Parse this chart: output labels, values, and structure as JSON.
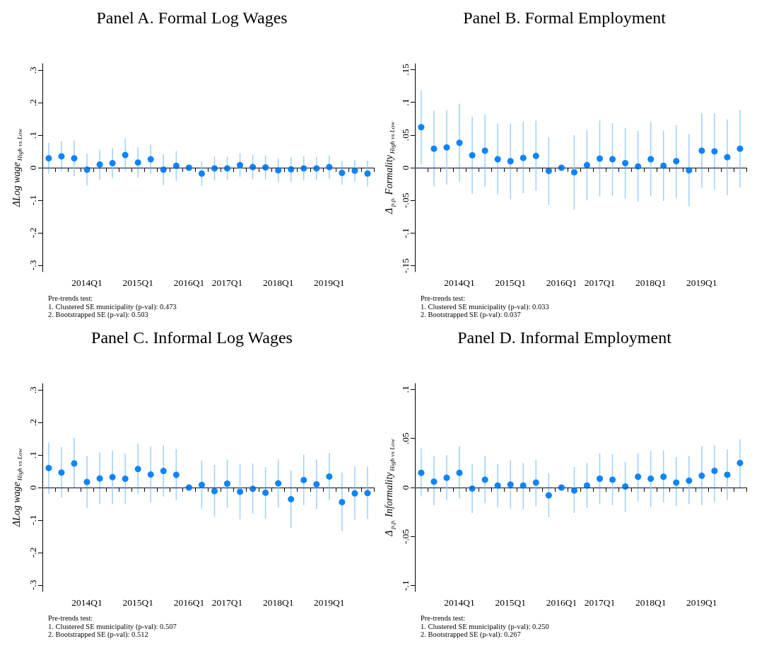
{
  "chart_data": [
    {
      "type": "scatter",
      "title": "Panel A. Formal Log Wages",
      "ylabel": "ΔLog wage$_{High vs Low}$",
      "categories": [
        null,
        null,
        null,
        "2014Q1",
        null,
        null,
        null,
        "2015Q1",
        null,
        null,
        null,
        "2016Q1",
        null,
        null,
        "2017Q1",
        null,
        null,
        null,
        "2018Q1",
        null,
        null,
        null,
        "2019Q1",
        null,
        null,
        null
      ],
      "ylim": [
        -0.32,
        0.32
      ],
      "yticks": [
        {
          "value": -0.3,
          "label": "-.3"
        },
        {
          "value": -0.2,
          "label": "-.2"
        },
        {
          "value": -0.1,
          "label": "-.1"
        },
        {
          "value": 0,
          "label": "0"
        },
        {
          "value": 0.1,
          "label": ".1"
        },
        {
          "value": 0.2,
          "label": ".2"
        },
        {
          "value": 0.3,
          "label": ".3"
        }
      ],
      "marker": "circle",
      "series": [
        {
          "color": "#0a84ff",
          "values": [
            0.029,
            0.035,
            0.029,
            -0.006,
            0.01,
            0.014,
            0.039,
            0.016,
            0.026,
            -0.006,
            0.006,
            0,
            -0.018,
            -0.002,
            -0.002,
            0.008,
            0.002,
            0.001,
            -0.008,
            -0.005,
            -0.002,
            -0.002,
            0.002,
            -0.016,
            -0.009,
            -0.018
          ],
          "errors": [
            [
              -0.018,
              0.076
            ],
            [
              -0.012,
              0.082
            ],
            [
              -0.026,
              0.084
            ],
            [
              -0.055,
              0.043
            ],
            [
              -0.037,
              0.056
            ],
            [
              -0.032,
              0.06
            ],
            [
              -0.01,
              0.089
            ],
            [
              -0.031,
              0.063
            ],
            [
              -0.019,
              0.071
            ],
            [
              -0.054,
              0.041
            ],
            [
              -0.04,
              0.051
            ],
            null,
            [
              -0.056,
              0.02
            ],
            [
              -0.039,
              0.034
            ],
            [
              -0.037,
              0.034
            ],
            [
              -0.028,
              0.045
            ],
            [
              -0.036,
              0.04
            ],
            [
              -0.036,
              0.038
            ],
            [
              -0.044,
              0.028
            ],
            [
              -0.044,
              0.032
            ],
            [
              -0.039,
              0.035
            ],
            [
              -0.038,
              0.034
            ],
            [
              -0.034,
              0.038
            ],
            [
              -0.052,
              0.02
            ],
            [
              -0.042,
              0.024
            ],
            [
              -0.057,
              0.021
            ]
          ]
        }
      ],
      "ref_lines": [
        {
          "axis": "y",
          "value": 0,
          "color": "#3c4f76",
          "line_style": "dashed"
        }
      ],
      "annotations": [
        "Pre-trends test:",
        "1. Clustered SE municipality (p-val): 0.473",
        "2. Bootstrapped SE (p-val): 0.503"
      ]
    },
    {
      "type": "scatter",
      "title": "Panel B. Formal Employment",
      "ylabel": "Δ$_{p.p.}$ Formality$_{High vs Low}$",
      "categories": [
        null,
        null,
        null,
        "2014Q1",
        null,
        null,
        null,
        "2015Q1",
        null,
        null,
        null,
        "2016Q1",
        null,
        null,
        "2017Q1",
        null,
        null,
        null,
        "2018Q1",
        null,
        null,
        null,
        "2019Q1",
        null,
        null,
        null
      ],
      "ylim": [
        -0.159,
        0.159
      ],
      "yticks": [
        {
          "value": -0.15,
          "label": "-.15"
        },
        {
          "value": -0.1,
          "label": "-.1"
        },
        {
          "value": -0.05,
          "label": "-.05"
        },
        {
          "value": 0,
          "label": "0"
        },
        {
          "value": 0.05,
          "label": ".05"
        },
        {
          "value": 0.1,
          "label": ".1"
        },
        {
          "value": 0.15,
          "label": ".15"
        }
      ],
      "marker": "circle",
      "series": [
        {
          "color": "#0a84ff",
          "values": [
            0.062,
            0.029,
            0.031,
            0.038,
            0.019,
            0.026,
            0.013,
            0.01,
            0.015,
            0.018,
            -0.005,
            0,
            -0.007,
            0.004,
            0.014,
            0.013,
            0.007,
            0.002,
            0.013,
            0.003,
            0.01,
            -0.004,
            0.026,
            0.025,
            0.016,
            0.029
          ],
          "errors": [
            [
              0.005,
              0.118
            ],
            [
              -0.029,
              0.087
            ],
            [
              -0.026,
              0.088
            ],
            [
              -0.021,
              0.098
            ],
            [
              -0.04,
              0.078
            ],
            [
              -0.029,
              0.081
            ],
            [
              -0.041,
              0.068
            ],
            [
              -0.048,
              0.068
            ],
            [
              -0.039,
              0.07
            ],
            [
              -0.035,
              0.072
            ],
            [
              -0.057,
              0.046
            ],
            null,
            [
              -0.064,
              0.05
            ],
            [
              -0.05,
              0.057
            ],
            [
              -0.044,
              0.072
            ],
            [
              -0.043,
              0.068
            ],
            [
              -0.047,
              0.061
            ],
            [
              -0.052,
              0.056
            ],
            [
              -0.043,
              0.07
            ],
            [
              -0.051,
              0.057
            ],
            [
              -0.046,
              0.065
            ],
            [
              -0.059,
              0.051
            ],
            [
              -0.031,
              0.083
            ],
            [
              -0.033,
              0.083
            ],
            [
              -0.042,
              0.074
            ],
            [
              -0.03,
              0.088
            ]
          ]
        }
      ],
      "ref_lines": [
        {
          "axis": "y",
          "value": 0,
          "color": "#3c4f76",
          "line_style": "dashed"
        }
      ],
      "annotations": [
        "Pre-trends test:",
        "1. Clustered SE municipality (p-val): 0.033",
        "2. Bootstrapped SE (p-val): 0.037"
      ]
    },
    {
      "type": "scatter",
      "title": "Panel C. Informal Log Wages",
      "ylabel": "ΔLog wage$_{High vs Low}$",
      "categories": [
        null,
        null,
        null,
        "2014Q1",
        null,
        null,
        null,
        "2015Q1",
        null,
        null,
        null,
        "2016Q1",
        null,
        null,
        "2017Q1",
        null,
        null,
        null,
        "2018Q1",
        null,
        null,
        null,
        "2019Q1",
        null,
        null,
        null
      ],
      "ylim": [
        -0.32,
        0.32
      ],
      "yticks": [
        {
          "value": -0.3,
          "label": "-.3"
        },
        {
          "value": -0.2,
          "label": "-.2"
        },
        {
          "value": -0.1,
          "label": "-.1"
        },
        {
          "value": 0,
          "label": "0"
        },
        {
          "value": 0.1,
          "label": ".1"
        },
        {
          "value": 0.2,
          "label": ".2"
        },
        {
          "value": 0.3,
          "label": ".3"
        }
      ],
      "marker": "circle",
      "series": [
        {
          "color": "#0a84ff",
          "values": [
            0.06,
            0.046,
            0.074,
            0.017,
            0.028,
            0.032,
            0.027,
            0.057,
            0.04,
            0.051,
            0.039,
            0,
            0.008,
            -0.011,
            0.012,
            -0.013,
            -0.004,
            -0.016,
            0.013,
            -0.036,
            0.023,
            0.01,
            0.034,
            -0.045,
            -0.018,
            -0.017
          ],
          "errors": [
            [
              -0.019,
              0.139
            ],
            [
              -0.031,
              0.124
            ],
            [
              0,
              0.153
            ],
            [
              -0.063,
              0.097
            ],
            [
              -0.051,
              0.108
            ],
            [
              -0.051,
              0.114
            ],
            [
              -0.05,
              0.105
            ],
            [
              -0.021,
              0.136
            ],
            [
              -0.045,
              0.126
            ],
            [
              -0.028,
              0.13
            ],
            [
              -0.039,
              0.118
            ],
            null,
            [
              -0.066,
              0.083
            ],
            [
              -0.091,
              0.07
            ],
            [
              -0.062,
              0.086
            ],
            [
              -0.098,
              0.072
            ],
            [
              -0.081,
              0.074
            ],
            [
              -0.095,
              0.063
            ],
            [
              -0.061,
              0.088
            ],
            [
              -0.124,
              0.053
            ],
            [
              -0.054,
              0.101
            ],
            [
              -0.066,
              0.086
            ],
            [
              -0.039,
              0.106
            ],
            [
              -0.134,
              0.046
            ],
            [
              -0.099,
              0.064
            ],
            [
              -0.097,
              0.064
            ]
          ]
        }
      ],
      "ref_lines": [
        {
          "axis": "y",
          "value": 0,
          "color": "#3c4f76",
          "line_style": "dashed"
        }
      ],
      "annotations": [
        "Pre-trends test:",
        "1. Clustered SE municipality (p-val): 0.507",
        "2. Bootstrapped SE (p-val): 0.512"
      ]
    },
    {
      "type": "scatter",
      "title": "Panel D. Informal Employment",
      "ylabel": "Δ$_{p.p.}$ Informality$_{High vs Low}$",
      "categories": [
        null,
        null,
        null,
        "2014Q1",
        null,
        null,
        null,
        "2015Q1",
        null,
        null,
        null,
        "2016Q1",
        null,
        null,
        "2017Q1",
        null,
        null,
        null,
        "2018Q1",
        null,
        null,
        null,
        "2019Q1",
        null,
        null,
        null
      ],
      "ylim": [
        -0.106,
        0.106
      ],
      "yticks": [
        {
          "value": -0.1,
          "label": "-.1"
        },
        {
          "value": -0.05,
          "label": "-.05"
        },
        {
          "value": 0,
          "label": "0"
        },
        {
          "value": 0.05,
          "label": ".05"
        },
        {
          "value": 0.1,
          "label": ".1"
        }
      ],
      "marker": "circle",
      "series": [
        {
          "color": "#0a84ff",
          "values": [
            0.015,
            0.006,
            0.01,
            0.015,
            -0.001,
            0.008,
            0.002,
            0.003,
            0.002,
            0.005,
            -0.008,
            0,
            -0.003,
            0.002,
            0.009,
            0.008,
            0.001,
            0.011,
            0.009,
            0.011,
            0.005,
            0.007,
            0.012,
            0.017,
            0.013,
            0.025
          ],
          "errors": [
            [
              -0.009,
              0.04
            ],
            [
              -0.018,
              0.032
            ],
            [
              -0.013,
              0.033
            ],
            [
              -0.011,
              0.042
            ],
            [
              -0.026,
              0.024
            ],
            [
              -0.016,
              0.032
            ],
            [
              -0.02,
              0.024
            ],
            [
              -0.022,
              0.028
            ],
            [
              -0.022,
              0.025
            ],
            [
              -0.019,
              0.028
            ],
            [
              -0.03,
              0.014
            ],
            null,
            [
              -0.026,
              0.021
            ],
            [
              -0.021,
              0.025
            ],
            [
              -0.017,
              0.035
            ],
            [
              -0.018,
              0.034
            ],
            [
              -0.025,
              0.026
            ],
            [
              -0.014,
              0.035
            ],
            [
              -0.02,
              0.037
            ],
            [
              -0.015,
              0.038
            ],
            [
              -0.019,
              0.031
            ],
            [
              -0.017,
              0.032
            ],
            [
              -0.018,
              0.042
            ],
            [
              -0.015,
              0.043
            ],
            [
              -0.013,
              0.039
            ],
            [
              0,
              0.049
            ]
          ]
        }
      ],
      "ref_lines": [
        {
          "axis": "y",
          "value": 0,
          "color": "#3c4f76",
          "line_style": "dashed"
        }
      ],
      "annotations": [
        "Pre-trends test:",
        "1. Clustered SE municipality (p-val): 0.250",
        "2. Bootstrapped SE (p-val): 0.267"
      ]
    }
  ]
}
